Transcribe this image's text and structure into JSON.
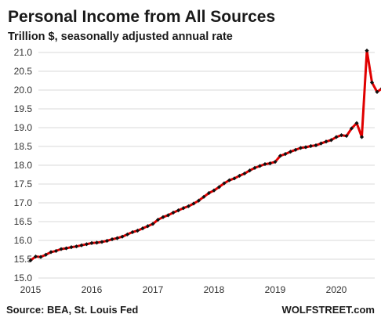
{
  "chart_data": {
    "type": "line",
    "title": "Personal Income from All Sources",
    "subtitle": "Trillion $, seasonally adjusted annual rate",
    "xlabel": "",
    "ylabel": "",
    "ylim": [
      15.0,
      21.0
    ],
    "y_ticks": [
      "15.0",
      "15.5",
      "16.0",
      "16.5",
      "17.0",
      "17.5",
      "18.0",
      "18.5",
      "19.0",
      "19.5",
      "20.0",
      "20.5",
      "21.0"
    ],
    "x_ticks": [
      "2015",
      "2016",
      "2017",
      "2018",
      "2019",
      "2020"
    ],
    "grid": true,
    "line_color": "#e00000",
    "marker_color": "#111111",
    "series": [
      {
        "x_start": "2015-01",
        "frequency": "monthly",
        "values": [
          15.47,
          15.57,
          15.56,
          15.62,
          15.69,
          15.72,
          15.77,
          15.79,
          15.82,
          15.84,
          15.87,
          15.9,
          15.93,
          15.94,
          15.96,
          15.99,
          16.03,
          16.06,
          16.1,
          16.16,
          16.22,
          16.26,
          16.32,
          16.38,
          16.44,
          16.55,
          16.62,
          16.67,
          16.74,
          16.8,
          16.86,
          16.91,
          16.98,
          17.06,
          17.16,
          17.26,
          17.33,
          17.42,
          17.52,
          17.6,
          17.65,
          17.72,
          17.78,
          17.86,
          17.93,
          17.98,
          18.03,
          18.05,
          18.09,
          18.25,
          18.3,
          18.36,
          18.41,
          18.46,
          18.48,
          18.51,
          18.53,
          18.58,
          18.63,
          18.67,
          18.75,
          18.8,
          18.78,
          18.98,
          19.12,
          18.75,
          21.05,
          20.2,
          19.95,
          20.05,
          19.5
        ]
      }
    ]
  },
  "footer": {
    "source": "Source: BEA, St. Louis Fed",
    "brand": "WOLFSTREET.com"
  }
}
